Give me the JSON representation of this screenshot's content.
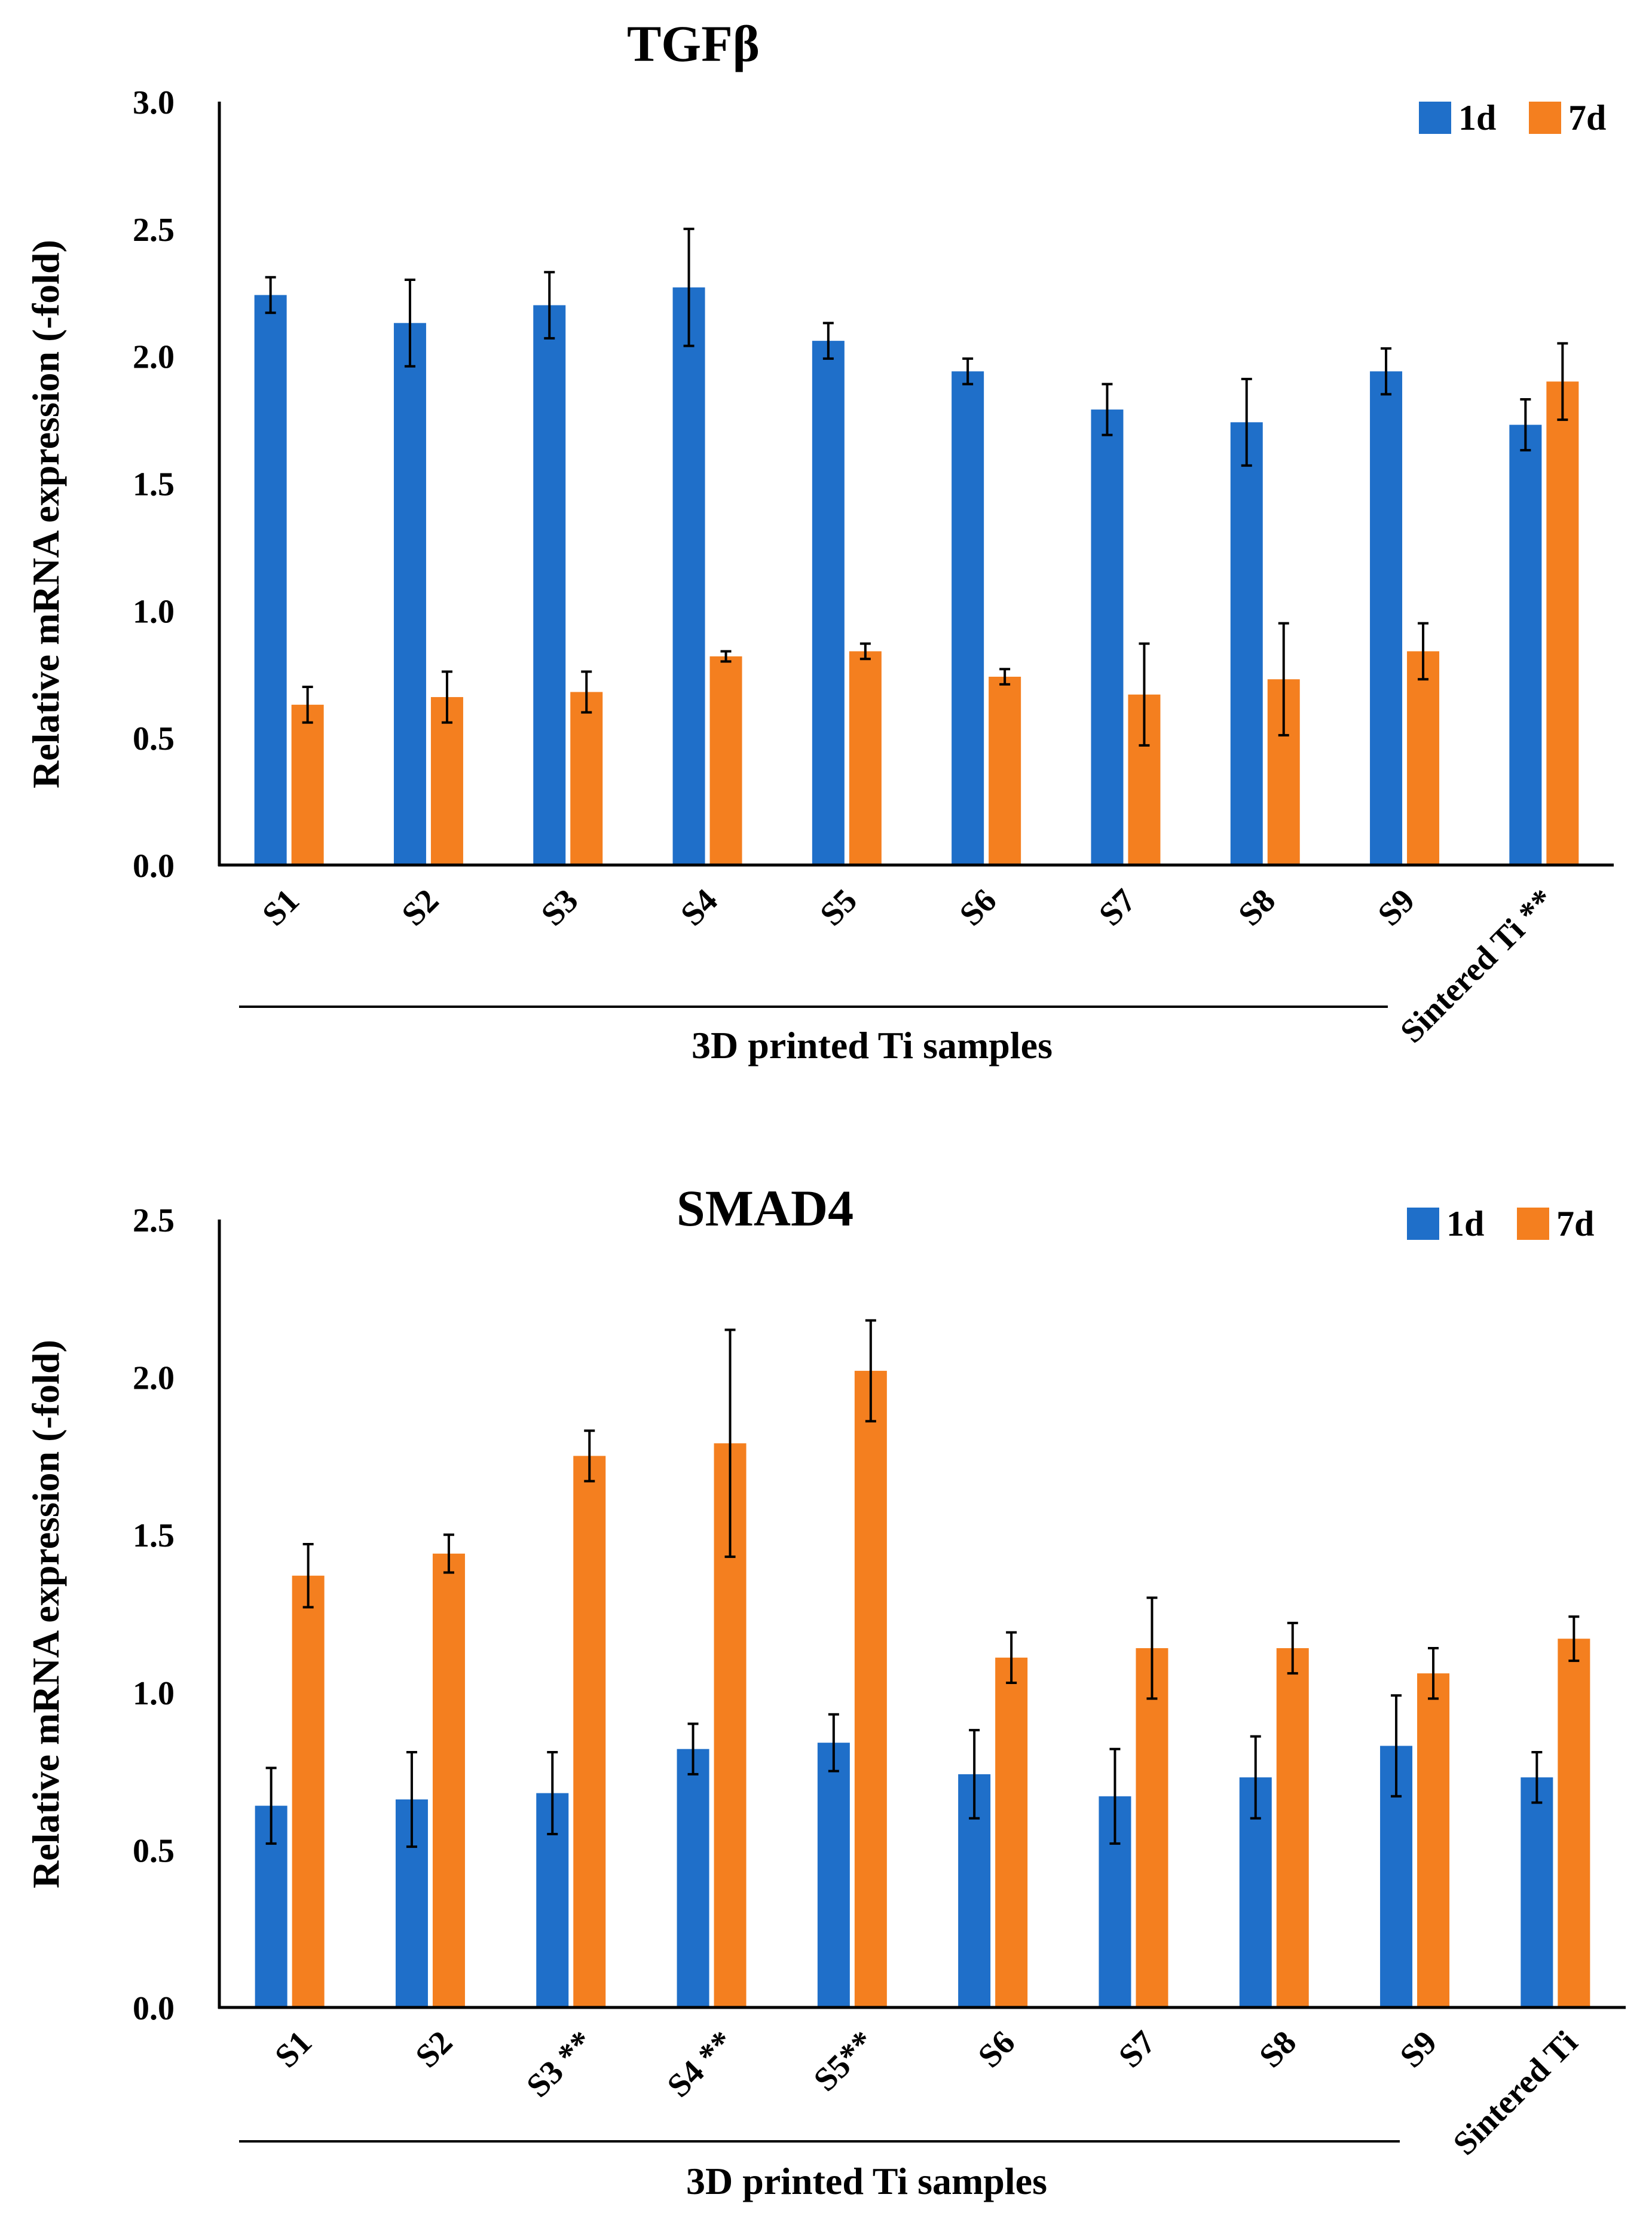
{
  "colors": {
    "d1": "#1f6fc9",
    "d7": "#f47f1f",
    "axis": "#000000",
    "background": "#ffffff"
  },
  "chart_data": [
    {
      "type": "bar",
      "title": "TGFβ",
      "ylabel": "Relative mRNA expression (-fold)",
      "xlabel": "3D printed Ti samples",
      "ylim": [
        0,
        3.0
      ],
      "yticks": [
        "0.0",
        "0.5",
        "1.0",
        "1.5",
        "2.0",
        "2.5",
        "3.0"
      ],
      "categories": [
        "S1",
        "S2",
        "S3",
        "S4",
        "S5",
        "S6",
        "S7",
        "S8",
        "S9",
        "Sintered Ti **"
      ],
      "legend_position": "top-right",
      "series": [
        {
          "name": "1d",
          "color": "#1f6fc9",
          "values": [
            2.24,
            2.13,
            2.2,
            2.27,
            2.06,
            1.94,
            1.79,
            1.74,
            1.94,
            1.73
          ],
          "errors": [
            0.07,
            0.17,
            0.13,
            0.23,
            0.07,
            0.05,
            0.1,
            0.17,
            0.09,
            0.1
          ]
        },
        {
          "name": "7d",
          "color": "#f47f1f",
          "values": [
            0.63,
            0.66,
            0.68,
            0.82,
            0.84,
            0.74,
            0.67,
            0.73,
            0.84,
            1.9
          ],
          "errors": [
            0.07,
            0.1,
            0.08,
            0.02,
            0.03,
            0.03,
            0.2,
            0.22,
            0.11,
            0.15
          ]
        }
      ]
    },
    {
      "type": "bar",
      "title": "SMAD4",
      "ylabel": "Relative mRNA expression (-fold)",
      "xlabel": "3D printed Ti samples",
      "ylim": [
        0,
        2.5
      ],
      "yticks": [
        "0.0",
        "0.5",
        "1.0",
        "1.5",
        "2.0",
        "2.5"
      ],
      "categories": [
        "S1",
        "S2",
        "S3 **",
        "S4  **",
        "S5**",
        "S6",
        "S7",
        "S8",
        "S9",
        "Sintered Ti"
      ],
      "legend_position": "top-right",
      "series": [
        {
          "name": "1d",
          "color": "#1f6fc9",
          "values": [
            0.64,
            0.66,
            0.68,
            0.82,
            0.84,
            0.74,
            0.67,
            0.73,
            0.83,
            0.73
          ],
          "errors": [
            0.12,
            0.15,
            0.13,
            0.08,
            0.09,
            0.14,
            0.15,
            0.13,
            0.16,
            0.08
          ]
        },
        {
          "name": "7d",
          "color": "#f47f1f",
          "values": [
            1.37,
            1.44,
            1.75,
            1.79,
            2.02,
            1.11,
            1.14,
            1.14,
            1.06,
            1.17
          ],
          "errors": [
            0.1,
            0.06,
            0.08,
            0.36,
            0.16,
            0.08,
            0.16,
            0.08,
            0.08,
            0.07
          ]
        }
      ]
    }
  ]
}
